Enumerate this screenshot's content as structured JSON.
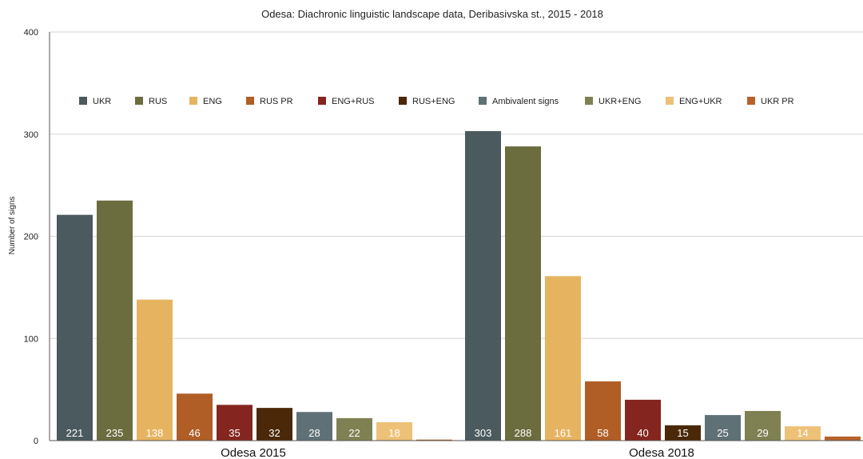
{
  "chart_data": {
    "type": "bar",
    "title": "Odesa: Diachronic linguistic landscape  data, Deribasivska st., 2015 - 2018",
    "ylabel": "Number of signs",
    "xlabel": "",
    "ylim": [
      0,
      400
    ],
    "yticks": [
      0,
      100,
      200,
      300,
      400
    ],
    "grid": true,
    "legend_position": "top",
    "categories": [
      "Odesa 2015",
      "Odesa 2018"
    ],
    "series": [
      {
        "name": "UKR",
        "color": "#4b5a5e",
        "values": [
          221,
          303
        ],
        "labels": [
          "221",
          "303"
        ]
      },
      {
        "name": "RUS",
        "color": "#6b6d3f",
        "values": [
          235,
          288
        ],
        "labels": [
          "235",
          "288"
        ]
      },
      {
        "name": "ENG",
        "color": "#e6b461",
        "values": [
          138,
          161
        ],
        "labels": [
          "138",
          "161"
        ]
      },
      {
        "name": "RUS PR",
        "color": "#b05e26",
        "values": [
          46,
          58
        ],
        "labels": [
          "46",
          "58"
        ]
      },
      {
        "name": "ENG+RUS",
        "color": "#84261f",
        "values": [
          35,
          40
        ],
        "labels": [
          "35",
          "40"
        ]
      },
      {
        "name": "RUS+ENG",
        "color": "#4a2808",
        "values": [
          32,
          15
        ],
        "labels": [
          "32",
          "15"
        ]
      },
      {
        "name": "Ambivalent signs",
        "color": "#5f7177",
        "values": [
          28,
          25
        ],
        "labels": [
          "28",
          "25"
        ]
      },
      {
        "name": "UKR+ENG",
        "color": "#7f8153",
        "values": [
          22,
          29
        ],
        "labels": [
          "22",
          "29"
        ]
      },
      {
        "name": "ENG+UKR",
        "color": "#edc178",
        "values": [
          18,
          14
        ],
        "labels": [
          "18",
          "14"
        ]
      },
      {
        "name": "UKR PR",
        "color": "#b8622a",
        "values": [
          1,
          4
        ],
        "labels": [
          "",
          ""
        ]
      }
    ]
  }
}
